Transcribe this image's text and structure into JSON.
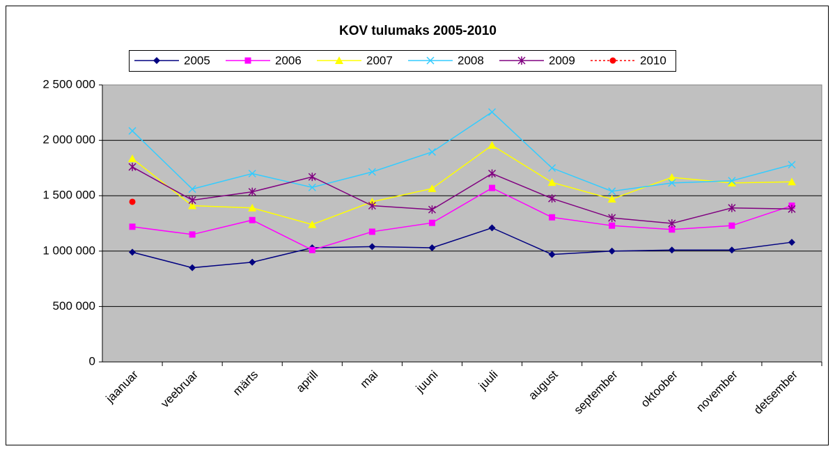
{
  "chart_data": {
    "type": "line",
    "title": "KOV tulumaks 2005-2010",
    "categories": [
      "jaanuar",
      "veebruar",
      "märts",
      "aprill",
      "mai",
      "juuni",
      "juuli",
      "august",
      "september",
      "oktoober",
      "november",
      "detsember"
    ],
    "series": [
      {
        "name": "2005",
        "color": "#000080",
        "marker": "diamond",
        "values": [
          990000,
          850000,
          900000,
          1030000,
          1040000,
          1030000,
          1210000,
          970000,
          1000000,
          1010000,
          1010000,
          1080000
        ]
      },
      {
        "name": "2006",
        "color": "#ff00ff",
        "marker": "square",
        "values": [
          1220000,
          1150000,
          1280000,
          1010000,
          1175000,
          1255000,
          1570000,
          1305000,
          1230000,
          1195000,
          1230000,
          1410000
        ]
      },
      {
        "name": "2007",
        "color": "#ffff00",
        "marker": "triangle",
        "values": [
          1835000,
          1410000,
          1390000,
          1240000,
          1445000,
          1565000,
          1955000,
          1620000,
          1470000,
          1665000,
          1615000,
          1625000
        ]
      },
      {
        "name": "2008",
        "color": "#33ccff",
        "marker": "x",
        "values": [
          2085000,
          1560000,
          1700000,
          1575000,
          1715000,
          1895000,
          2255000,
          1750000,
          1540000,
          1615000,
          1635000,
          1780000
        ]
      },
      {
        "name": "2009",
        "color": "#800080",
        "marker": "star",
        "values": [
          1760000,
          1460000,
          1535000,
          1670000,
          1410000,
          1375000,
          1700000,
          1475000,
          1300000,
          1250000,
          1390000,
          1380000
        ]
      },
      {
        "name": "2010",
        "color": "#ff0000",
        "marker": "circle",
        "dashed": true,
        "values": [
          1445000,
          null,
          null,
          null,
          null,
          null,
          null,
          null,
          null,
          null,
          null,
          null
        ]
      }
    ],
    "ylim": [
      0,
      2500000
    ],
    "yticks": [
      0,
      {
        "value": 500000,
        "label": "500 000"
      },
      {
        "value": 1000000,
        "label": "1 000 000"
      },
      {
        "value": 1500000,
        "label": "1 500 000"
      },
      {
        "value": 2000000,
        "label": "2 000 000"
      },
      {
        "value": 2500000,
        "label": "2 500 000"
      }
    ],
    "grid": true,
    "legend": "top"
  }
}
